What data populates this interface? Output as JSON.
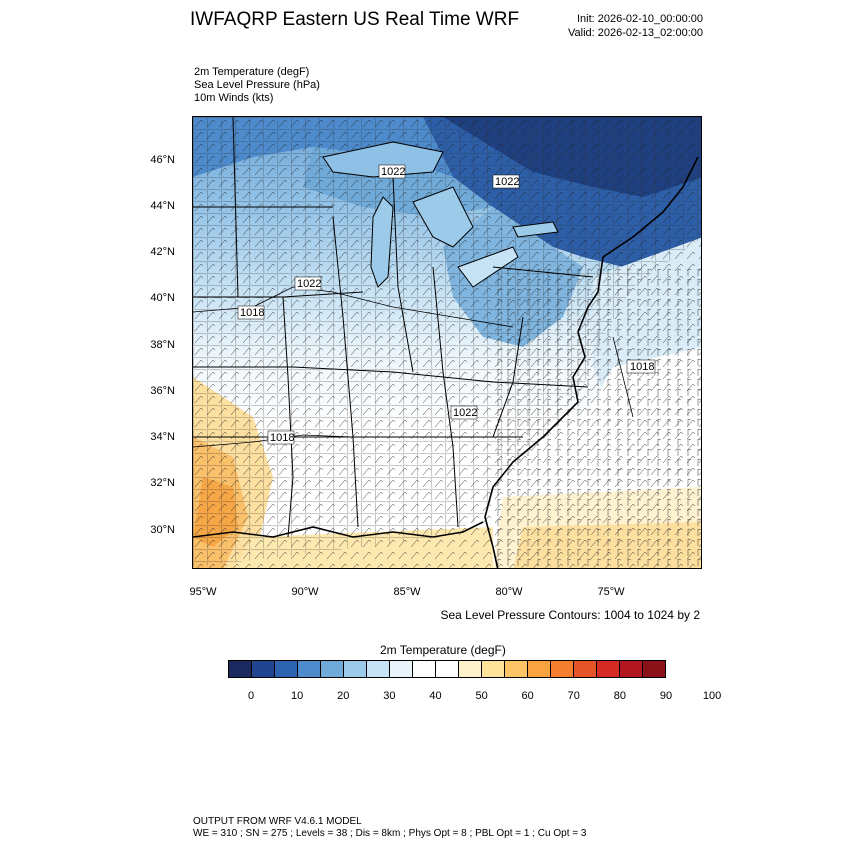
{
  "header": {
    "title": "IWFAQRP Eastern US Real Time WRF",
    "init": "Init: 2026-02-10_00:00:00",
    "valid": "Valid: 2026-02-13_02:00:00"
  },
  "fields": [
    "2m Temperature   (degF)",
    "Sea Level Pressure   (hPa)",
    "10m Winds   (kts)"
  ],
  "map": {
    "lat_labels": [
      "46°N",
      "44°N",
      "42°N",
      "40°N",
      "38°N",
      "36°N",
      "34°N",
      "32°N",
      "30°N"
    ],
    "lon_labels": [
      "95°W",
      "90°W",
      "85°W",
      "80°W",
      "75°W"
    ],
    "pressure_labels": [
      {
        "text": "1022",
        "region": "lake-superior"
      },
      {
        "text": "1022",
        "region": "ontario"
      },
      {
        "text": "1022",
        "region": "illinois"
      },
      {
        "text": "1018",
        "region": "missouri"
      },
      {
        "text": "1018",
        "region": "offshore-virginia"
      },
      {
        "text": "1022",
        "region": "appalachians"
      },
      {
        "text": "1018",
        "region": "arkansas"
      }
    ]
  },
  "contour_note": "Sea Level Pressure Contours: 1004 to 1024 by 2",
  "colorbar": {
    "title": "2m Temperature  (degF)",
    "labels": [
      "0",
      "10",
      "20",
      "30",
      "40",
      "50",
      "60",
      "70",
      "80",
      "90",
      "100"
    ],
    "colors": [
      "#1b2a5e",
      "#20448f",
      "#2e63b0",
      "#4d8bcc",
      "#6faad9",
      "#9bcbe9",
      "#c5e3f4",
      "#e8f4fa",
      "#ffffff",
      "#ffffff",
      "#fff3cc",
      "#fee49a",
      "#fdc468",
      "#f9a440",
      "#f57e30",
      "#e6552a",
      "#d42c24",
      "#b2161e",
      "#8b1219"
    ]
  },
  "footer": {
    "model": "OUTPUT FROM WRF V4.6.1 MODEL",
    "params": "WE = 310 ; SN = 275 ; Levels = 38 ; Dis = 8km ; Phys Opt = 8 ; PBL Opt = 1 ; Cu Opt = 3"
  }
}
